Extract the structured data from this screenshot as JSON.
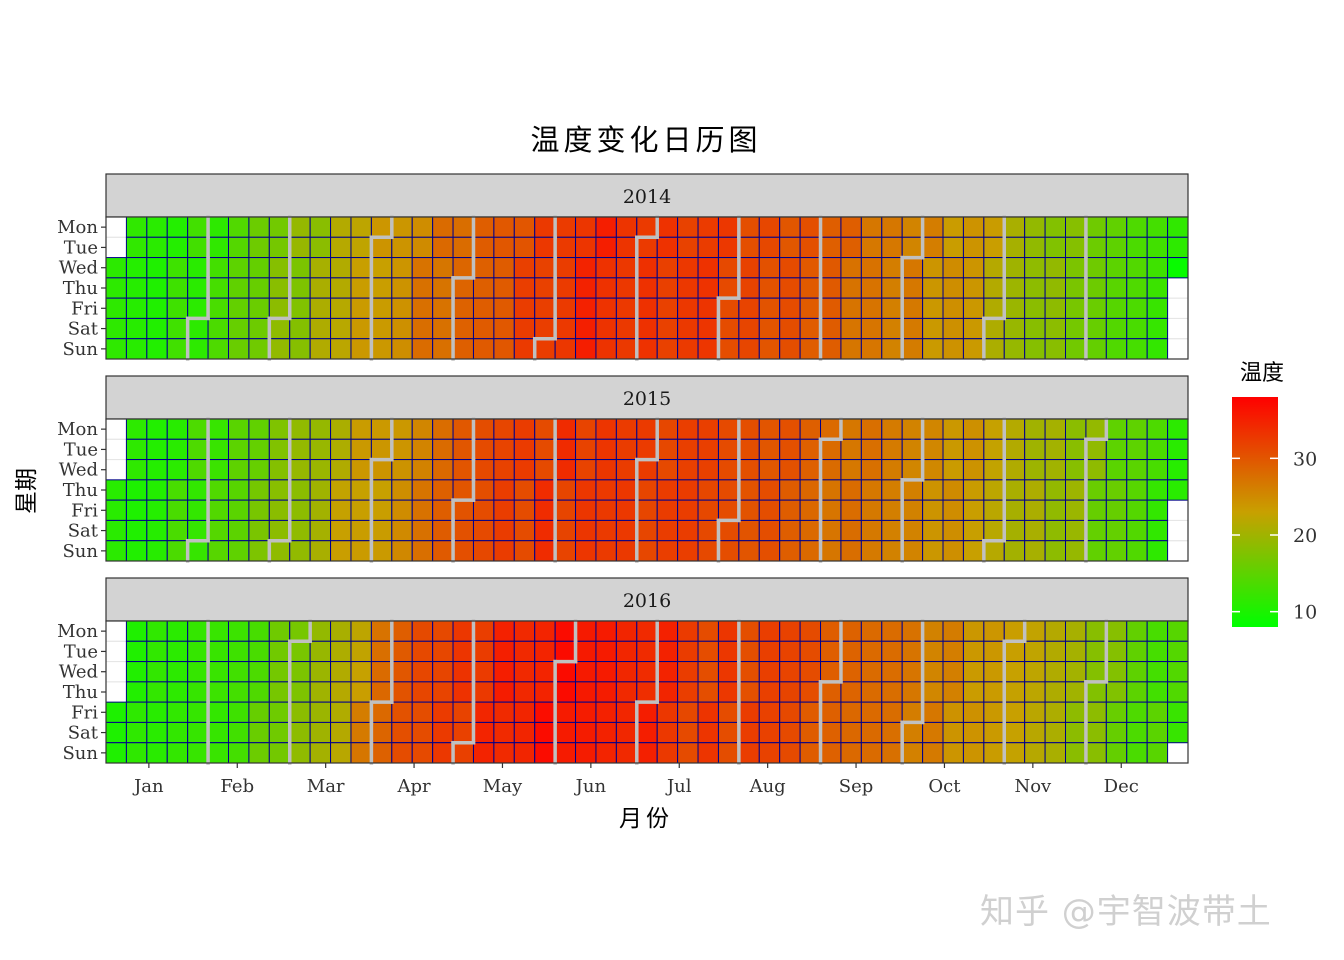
{
  "chart_data": {
    "type": "heatmap",
    "title": "温度变化日历图",
    "xlabel": "月份",
    "ylabel": "星期",
    "years": [
      "2014",
      "2015",
      "2016"
    ],
    "weekdays": [
      "Mon",
      "Tue",
      "Wed",
      "Thu",
      "Fri",
      "Sat",
      "Sun"
    ],
    "months": [
      "Jan",
      "Feb",
      "Mar",
      "Apr",
      "May",
      "Jun",
      "Jul",
      "Aug",
      "Sep",
      "Oct",
      "Nov",
      "Dec"
    ],
    "weeks_per_year": 53,
    "legend": {
      "title": "温度",
      "ticks": [
        10,
        20,
        30
      ],
      "range": [
        8,
        38
      ],
      "low_color": "#00ff00",
      "mid_color": "#c8a000",
      "high_color": "#ff0000",
      "placement": "right"
    },
    "grid_line_color": "#00008b",
    "month_border_color": "#c0c0c0",
    "monthly_mean_temp": {
      "2014": [
        10,
        12,
        19,
        25,
        30,
        34,
        33,
        30,
        27,
        23,
        17,
        10
      ],
      "2015": [
        10,
        13,
        19,
        26,
        32,
        33,
        31,
        29,
        27,
        23,
        18,
        12
      ],
      "2016": [
        10,
        12,
        19,
        30,
        35,
        36,
        32,
        30,
        28,
        23,
        18,
        13
      ]
    }
  },
  "watermark": "知乎 @宇智波带土"
}
